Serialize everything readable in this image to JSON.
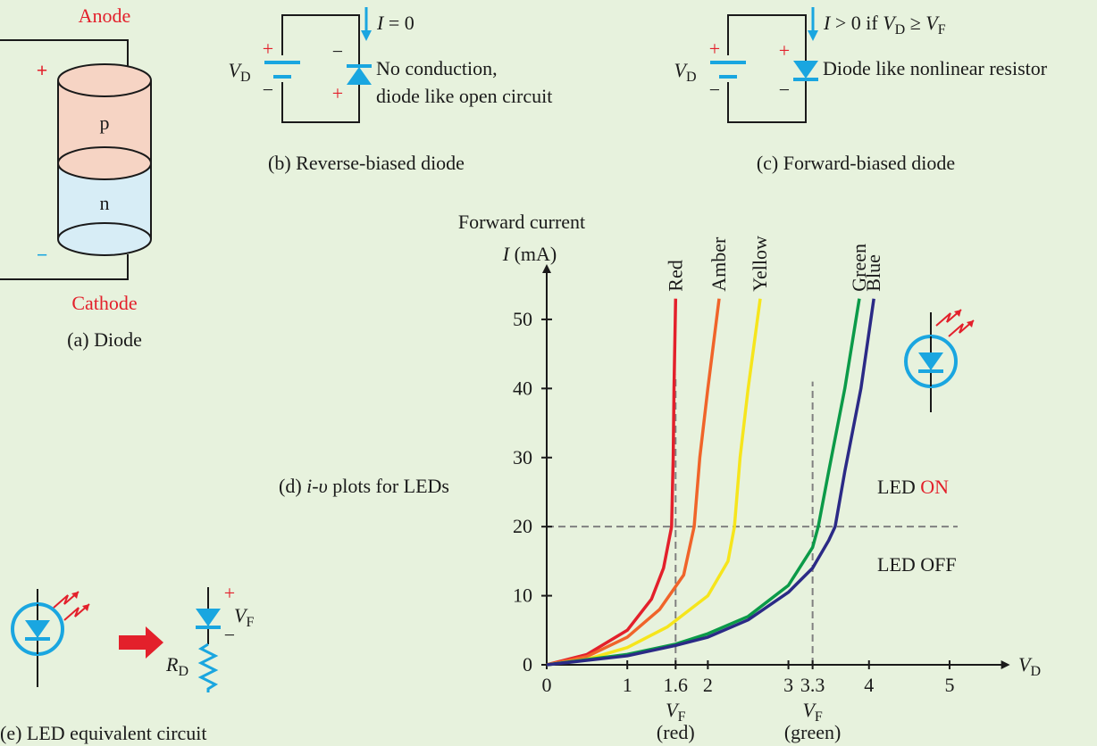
{
  "diagrams": {
    "a": {
      "anode": "Anode",
      "plus": "+",
      "p": "p",
      "n": "n",
      "minus": "−",
      "cathode": "Cathode",
      "caption": "(a) Diode"
    },
    "b": {
      "current": [
        "I",
        " = 0"
      ],
      "source": [
        "V",
        "D"
      ],
      "plus": "+",
      "minus": "−",
      "diode_minus": "−",
      "diode_plus": "+",
      "line1": "No conduction,",
      "line2": "diode like open circuit",
      "caption": "(b) Reverse-biased diode"
    },
    "c": {
      "current": [
        "I",
        " > 0 if ",
        "V",
        "D",
        " ≥ ",
        "V",
        "F"
      ],
      "source": [
        "V",
        "D"
      ],
      "plus": "+",
      "minus": "−",
      "diode_plus": "+",
      "diode_minus": "−",
      "note": "Diode like nonlinear resistor",
      "caption": "(c) Forward-biased diode"
    },
    "e": {
      "voltage": [
        "V",
        "F"
      ],
      "plus": "+",
      "minus": "−",
      "resistor": [
        "R",
        "D"
      ],
      "caption": "(e) LED equivalent circuit"
    }
  },
  "chart_data": {
    "type": "line",
    "caption": [
      "(d) ",
      "i",
      "-",
      "υ",
      " plots for LEDs"
    ],
    "y_label_top": "Forward current",
    "y_label": [
      "I",
      " (mA)"
    ],
    "x_label": [
      "V",
      "D"
    ],
    "xlim": [
      0,
      5.75
    ],
    "ylim": [
      0,
      58
    ],
    "xticks": [
      0,
      1,
      1.6,
      2,
      3,
      3.3,
      4,
      5
    ],
    "yticks": [
      0,
      10,
      20,
      30,
      40,
      50
    ],
    "series": [
      {
        "name": "Red",
        "color": "#e3202b",
        "x": [
          0,
          0.5,
          1,
          1.3,
          1.45,
          1.55,
          1.57,
          1.58,
          1.6
        ],
        "values": [
          0,
          1.5,
          5,
          9.5,
          14,
          20,
          30,
          40,
          53
        ]
      },
      {
        "name": "Amber",
        "color": "#f0642a",
        "x": [
          0,
          0.5,
          1,
          1.4,
          1.7,
          1.83,
          1.9,
          2.0,
          2.14
        ],
        "values": [
          0,
          1.2,
          4,
          8,
          13,
          20,
          30,
          40,
          53
        ]
      },
      {
        "name": "Yellow",
        "color": "#f6e51c",
        "label_color": "#f7a43a",
        "x": [
          0,
          0.5,
          1,
          1.5,
          2,
          2.25,
          2.33,
          2.4,
          2.5,
          2.65
        ],
        "values": [
          0,
          0.8,
          2.5,
          5.5,
          10,
          15,
          20,
          30,
          40,
          53
        ]
      },
      {
        "name": "Green",
        "color": "#0b9a48",
        "x": [
          0,
          1,
          1.6,
          2,
          2.5,
          3,
          3.3,
          3.37,
          3.5,
          3.7,
          3.88
        ],
        "values": [
          0,
          1.5,
          3,
          4.5,
          7,
          11.5,
          17,
          20,
          28,
          40,
          53
        ]
      },
      {
        "name": "Blue",
        "color": "#2b2a86",
        "x": [
          0,
          1,
          1.6,
          2,
          2.5,
          3,
          3.3,
          3.5,
          3.58,
          3.7,
          3.9,
          4.06
        ],
        "values": [
          0,
          1.3,
          2.8,
          4,
          6.5,
          10.5,
          14,
          18,
          20,
          28,
          40,
          53
        ]
      }
    ],
    "ref_lines": [
      {
        "x": [
          0,
          5.1
        ],
        "y": [
          20,
          20
        ]
      },
      {
        "x": [
          1.6,
          1.6
        ],
        "y": [
          0,
          42
        ]
      },
      {
        "x": [
          3.3,
          3.3
        ],
        "y": [
          0,
          41
        ]
      }
    ],
    "vf_labels": [
      {
        "x": 1.6,
        "text": [
          "V",
          "F"
        ],
        "note": "(red)"
      },
      {
        "x": 3.3,
        "text": [
          "V",
          "F"
        ],
        "note": "(green)"
      }
    ],
    "region_on": [
      "LED ",
      "ON"
    ],
    "region_off": "LED OFF"
  }
}
